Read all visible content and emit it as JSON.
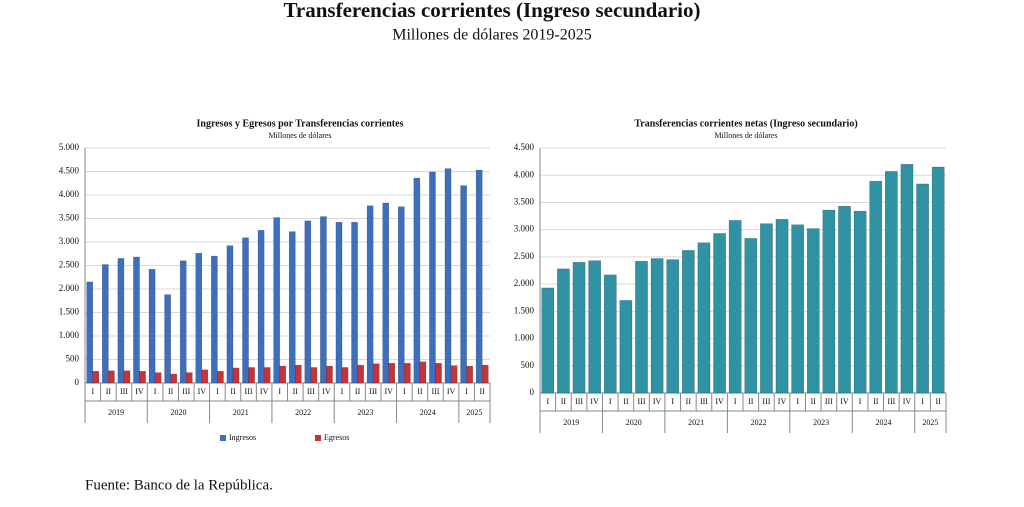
{
  "title": "Transferencias corrientes (Ingreso secundario)",
  "subtitle": "Millones de dólares 2019-2025",
  "source": "Fuente: Banco de la República.",
  "chart_data": [
    {
      "type": "bar",
      "title": "Ingresos y Egresos por Transferencias corrientes",
      "subtitle": "Millones de dólares",
      "categories": [
        "I",
        "II",
        "III",
        "IV",
        "I",
        "II",
        "III",
        "IV",
        "I",
        "II",
        "III",
        "IV",
        "I",
        "II",
        "III",
        "IV",
        "I",
        "II",
        "III",
        "IV",
        "I",
        "II",
        "III",
        "IV",
        "I",
        "II"
      ],
      "years": [
        "2019",
        "2020",
        "2021",
        "2022",
        "2023",
        "2024",
        "2025"
      ],
      "series": [
        {
          "name": "Ingresos",
          "color": "#3d6fbf",
          "values": [
            2150,
            2520,
            2650,
            2680,
            2420,
            1880,
            2600,
            2760,
            2700,
            2920,
            3090,
            3250,
            3520,
            3220,
            3450,
            3540,
            3420,
            3420,
            3770,
            3830,
            3750,
            4360,
            4490,
            4560,
            4200,
            4530
          ]
        },
        {
          "name": "Egresos",
          "color": "#c8333a",
          "values": [
            250,
            260,
            260,
            250,
            220,
            190,
            220,
            280,
            250,
            320,
            330,
            330,
            360,
            380,
            330,
            360,
            330,
            380,
            410,
            420,
            420,
            450,
            420,
            370,
            360,
            380
          ]
        }
      ],
      "ylim": [
        0,
        5000
      ],
      "yticks": [
        0,
        500,
        {
          "value": 1000,
          "label": "1.000"
        },
        {
          "value": 1500,
          "label": "1.500"
        },
        {
          "value": 2000,
          "label": "2.000"
        },
        {
          "value": 2500,
          "label": "2.500"
        },
        {
          "value": 3000,
          "label": "3.000"
        },
        {
          "value": 3500,
          "label": "3.500"
        },
        {
          "value": 4000,
          "label": "4.000"
        },
        {
          "value": 4500,
          "label": "4.500"
        },
        {
          "value": 5000,
          "label": "5.000"
        }
      ],
      "grid": true,
      "legend": "bottom"
    },
    {
      "type": "bar",
      "title": "Transferencias corrientes netas (Ingreso secundario)",
      "subtitle": "Millones de dólares",
      "categories": [
        "I",
        "II",
        "III",
        "IV",
        "I",
        "II",
        "III",
        "IV",
        "I",
        "II",
        "III",
        "IV",
        "I",
        "II",
        "III",
        "IV",
        "I",
        "II",
        "III",
        "IV",
        "I",
        "II",
        "III",
        "IV",
        "I",
        "II"
      ],
      "years": [
        "2019",
        "2020",
        "2021",
        "2022",
        "2023",
        "2024",
        "2025"
      ],
      "color": "#2f93a4",
      "values": [
        1930,
        2280,
        2400,
        2430,
        2170,
        1700,
        2420,
        2470,
        2450,
        2620,
        2760,
        2930,
        3170,
        2840,
        3110,
        3190,
        3090,
        3020,
        3360,
        3430,
        3340,
        3890,
        4070,
        4200,
        3840,
        4150
      ],
      "ylim": [
        0,
        4500
      ],
      "yticks": [
        0,
        500,
        {
          "value": 1000,
          "label": "1.000"
        },
        {
          "value": 1500,
          "label": "1.500"
        },
        {
          "value": 2000,
          "label": "2.000"
        },
        {
          "value": 2500,
          "label": "2.500"
        },
        {
          "value": 3000,
          "label": "3.000"
        },
        {
          "value": 3500,
          "label": "3.500"
        },
        {
          "value": 4000,
          "label": "4.000"
        },
        {
          "value": 4500,
          "label": "4.500"
        }
      ],
      "grid": true
    }
  ]
}
